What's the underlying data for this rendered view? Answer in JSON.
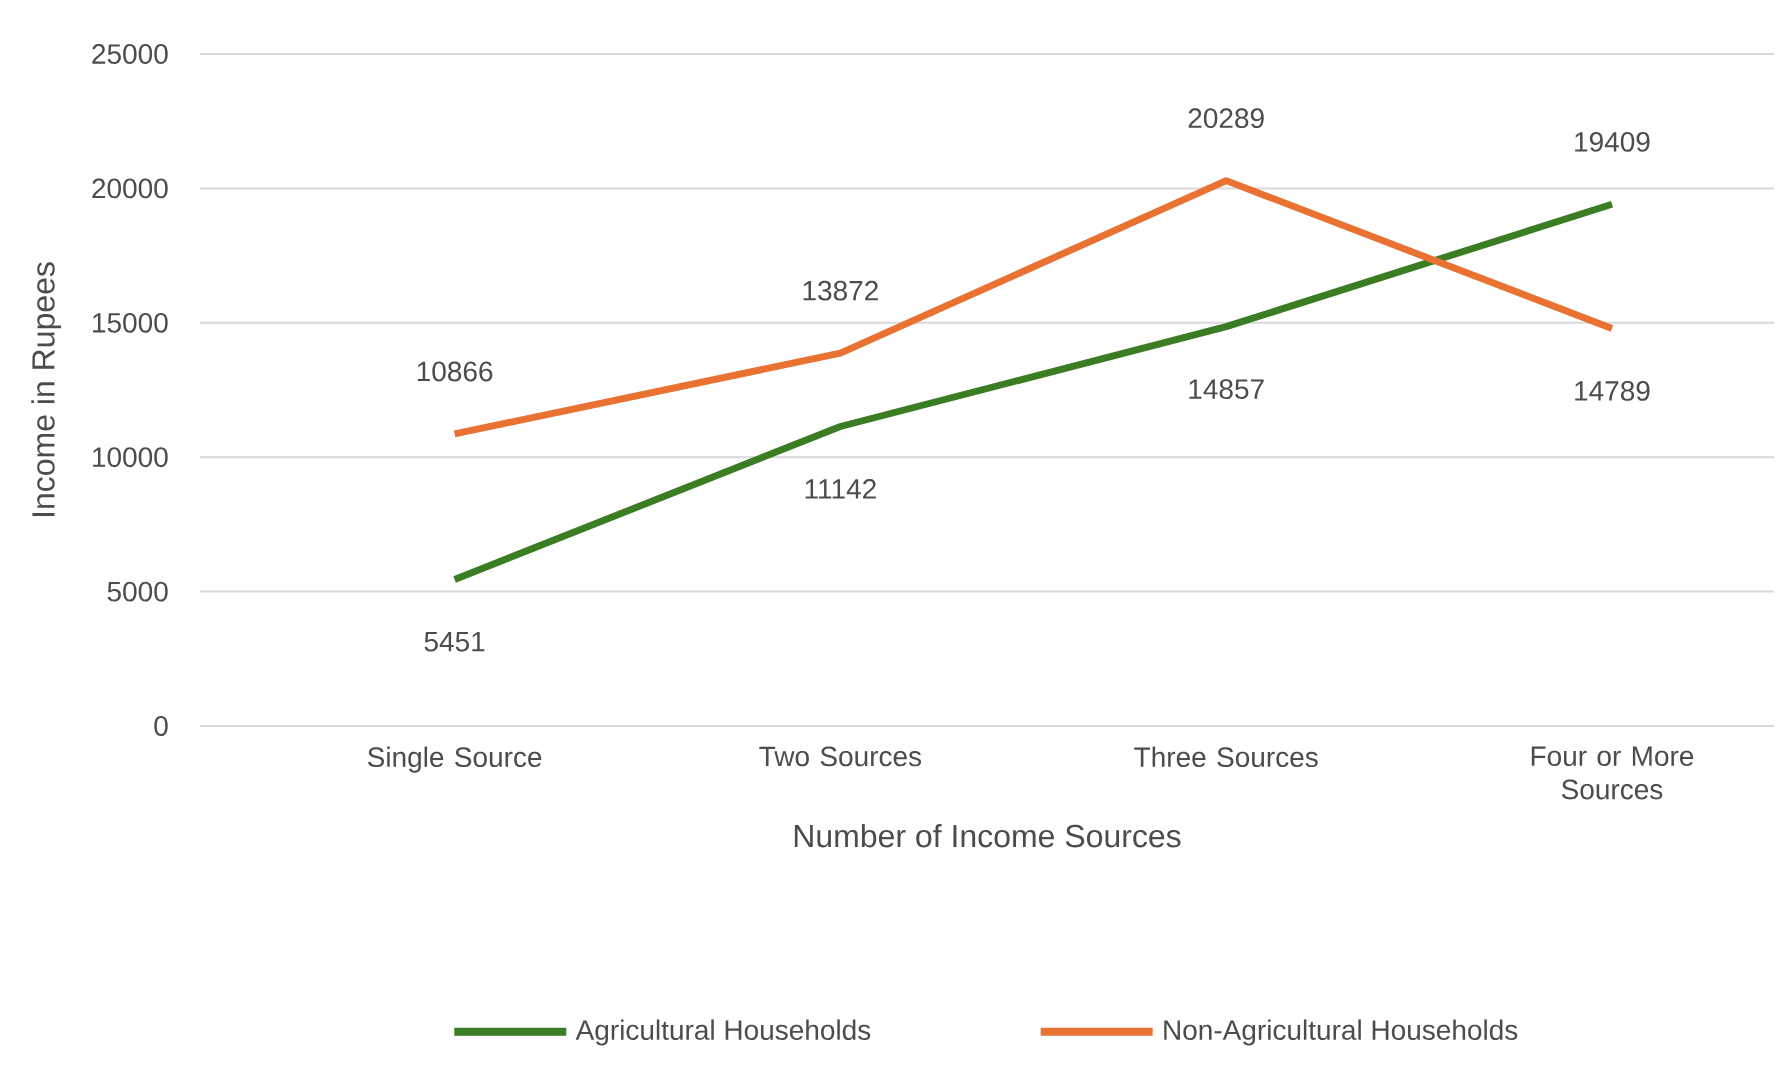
{
  "chart_data": {
    "type": "line",
    "xlabel": "Number of Income Sources",
    "ylabel": "Income in Rupees",
    "categories": [
      "Single Source",
      "Two Sources",
      "Three Sources",
      "Four or More Sources"
    ],
    "series": [
      {
        "name": "Agricultural Households",
        "color": "#3a7d22",
        "values": [
          5451,
          11142,
          14857,
          19409
        ]
      },
      {
        "name": "Non-Agricultural Households",
        "color": "#e97132",
        "values": [
          10866,
          13872,
          20289,
          14789
        ]
      }
    ],
    "ylim": [
      0,
      25000
    ],
    "yticks": [
      0,
      5000,
      10000,
      15000,
      20000,
      25000
    ],
    "grid": "y",
    "legend": "bottom",
    "data_labels": true,
    "marker": "none",
    "line_style": "solid"
  }
}
